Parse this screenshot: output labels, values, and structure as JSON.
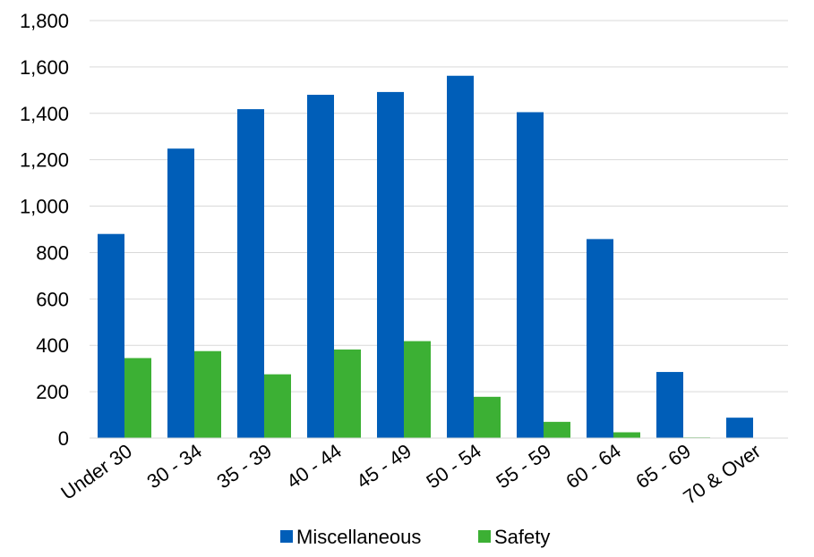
{
  "chart_data": {
    "type": "bar",
    "categories": [
      "Under 30",
      "30 - 34",
      "35 - 39",
      "40 - 44",
      "45 - 49",
      "50 - 54",
      "55 - 59",
      "60 - 64",
      "65 - 69",
      "70 & Over"
    ],
    "series": [
      {
        "name": "Miscellaneous",
        "color": "#005EB8",
        "values": [
          880,
          1248,
          1418,
          1480,
          1492,
          1562,
          1405,
          858,
          285,
          88
        ]
      },
      {
        "name": "Safety",
        "color": "#3CB034",
        "values": [
          345,
          375,
          275,
          382,
          418,
          178,
          70,
          25,
          3,
          0
        ]
      }
    ],
    "ylim": [
      0,
      1800
    ],
    "yticks": [
      0,
      200,
      400,
      600,
      800,
      1000,
      1200,
      1400,
      1600,
      1800
    ],
    "ytick_labels": [
      "0",
      "200",
      "400",
      "600",
      "800",
      "1,000",
      "1,200",
      "1,400",
      "1,600",
      "1,800"
    ],
    "grid": true,
    "legend": "bottom"
  }
}
